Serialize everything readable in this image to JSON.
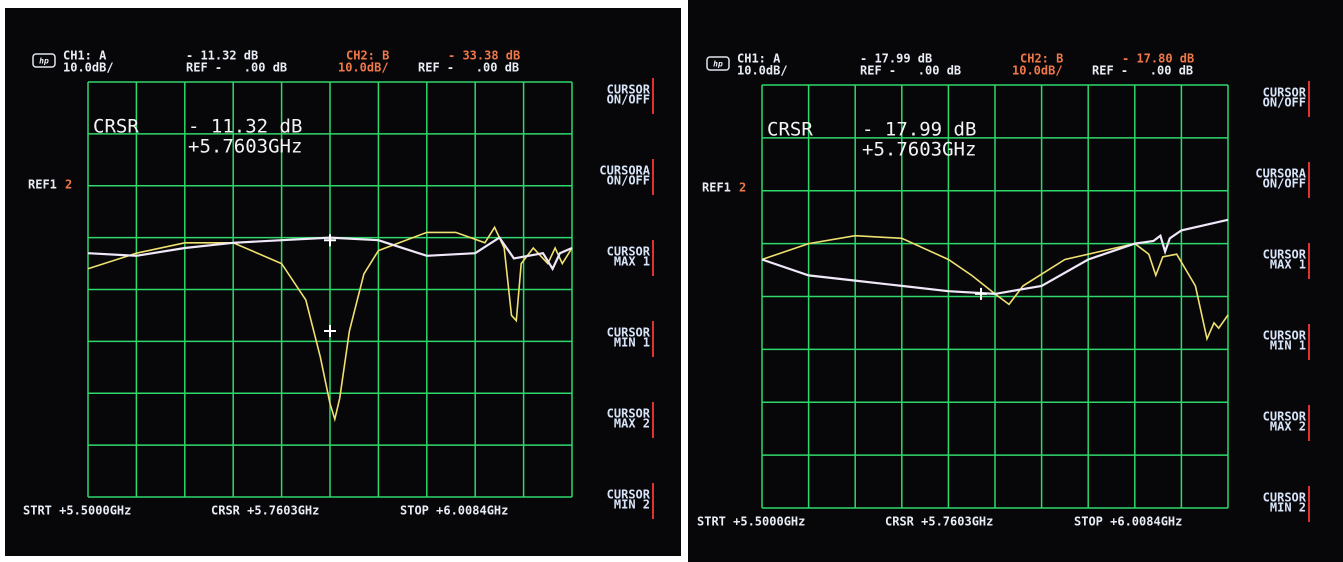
{
  "screens": [
    {
      "logo": "hp",
      "header": {
        "ch1": "CH1: A",
        "ch1_value": "- 11.32 dB",
        "ch1_scale": "10.0dB/",
        "ch1_ref": "REF -   .00 dB",
        "ch2": "CH2: B",
        "ch2_value": "- 33.38 dB",
        "ch2_scale": "10.0dB/",
        "ch2_ref": "REF -   .00 dB"
      },
      "cursor": {
        "label": "CRSR",
        "value": "- 11.32 dB",
        "freq": "+5.7603GHz"
      },
      "ref": "REF1",
      "ref_marker": "2",
      "softkeys": [
        [
          "CURSOR",
          "ON/OFF"
        ],
        [
          "CURSORA",
          "ON/OFF"
        ],
        [
          "CURSOR",
          "MAX 1"
        ],
        [
          "CURSOR",
          "MIN 1"
        ],
        [
          "CURSOR",
          "MAX 2"
        ],
        [
          "CURSOR",
          "MIN 2"
        ]
      ],
      "footer": {
        "start": "STRT +5.5000GHz",
        "cursor": "CRSR +5.7603GHz",
        "stop": "STOP +6.0084GHz"
      }
    },
    {
      "logo": "hp",
      "header": {
        "ch1": "CH1: A",
        "ch1_value": "- 17.99 dB",
        "ch1_scale": "10.0dB/",
        "ch1_ref": "REF -   .00 dB",
        "ch2": "CH2: B",
        "ch2_value": "- 17.80 dB",
        "ch2_scale": "10.0dB/",
        "ch2_ref": "REF -   .00 dB"
      },
      "cursor": {
        "label": "CRSR",
        "value": "- 17.99 dB",
        "freq": "+5.7603GHz"
      },
      "ref": "REF1",
      "ref_marker": "2",
      "softkeys": [
        [
          "CURSOR",
          "ON/OFF"
        ],
        [
          "CURSORA",
          "ON/OFF"
        ],
        [
          "CURSOR",
          "MAX 1"
        ],
        [
          "CURSOR",
          "MIN 1"
        ],
        [
          "CURSOR",
          "MAX 2"
        ],
        [
          "CURSOR",
          "MIN 2"
        ]
      ],
      "footer": {
        "start": "STRT +5.5000GHz",
        "cursor": "CRSR +5.7603GHz",
        "stop": "STOP +6.0084GHz"
      }
    }
  ]
}
